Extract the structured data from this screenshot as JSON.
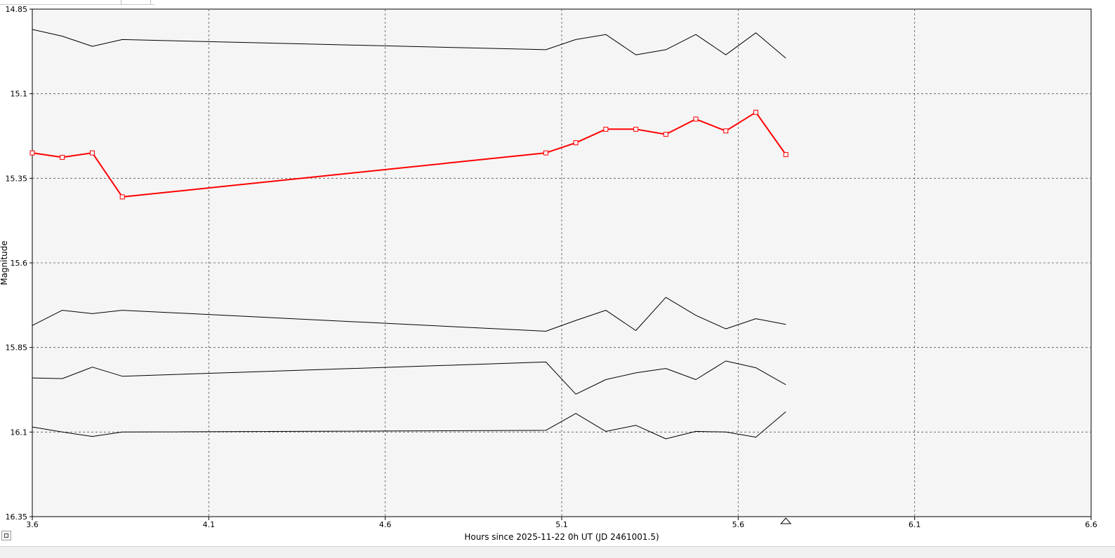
{
  "chart_data": {
    "type": "line",
    "title": "",
    "xlabel": "Hours since 2025-11-22 0h UT (JD 2461001.5)",
    "ylabel": "Magnitude",
    "xlim": [
      3.6,
      6.6
    ],
    "ylim": [
      14.85,
      16.35
    ],
    "y_inverted": true,
    "grid": true,
    "x_ticks": [
      3.6,
      4.1,
      4.6,
      5.1,
      5.6,
      6.1,
      6.6
    ],
    "y_ticks": [
      14.85,
      15.1,
      15.35,
      15.6,
      15.85,
      16.1,
      16.35
    ],
    "x_tick_labels": [
      "3.6",
      "4.1",
      "4.6",
      "5.1",
      "5.6",
      "6.1",
      "6.6"
    ],
    "y_tick_labels": [
      "14.85",
      "15.1",
      "15.35",
      "15.6",
      "15.85",
      "16.1",
      "16.35"
    ],
    "x": [
      3.6,
      3.685,
      3.77,
      3.855,
      5.055,
      5.14,
      5.225,
      5.31,
      5.395,
      5.48,
      5.565,
      5.65,
      5.735
    ],
    "marker_x": 5.735,
    "colors": {
      "target": "#ff0000",
      "comparison": "#000000",
      "background": "#f5f5f5",
      "grid": "#555555"
    },
    "series": [
      {
        "role": "comparison",
        "values": [
          14.91,
          14.93,
          14.96,
          14.94,
          14.97,
          14.94,
          14.925,
          14.985,
          14.97,
          14.925,
          14.985,
          14.92,
          14.995
        ]
      },
      {
        "role": "target",
        "markers": "square",
        "values": [
          15.275,
          15.288,
          15.275,
          15.405,
          15.275,
          15.245,
          15.205,
          15.205,
          15.22,
          15.175,
          15.21,
          15.155,
          15.28
        ]
      },
      {
        "role": "comparison",
        "values": [
          15.785,
          15.74,
          15.75,
          15.74,
          15.802,
          15.77,
          15.74,
          15.8,
          15.702,
          15.755,
          15.795,
          15.765,
          15.782
        ]
      },
      {
        "role": "comparison",
        "values": [
          15.94,
          15.942,
          15.908,
          15.935,
          15.893,
          15.988,
          15.945,
          15.925,
          15.912,
          15.945,
          15.89,
          15.91,
          15.96
        ]
      },
      {
        "role": "comparison",
        "values": [
          16.085,
          16.1,
          16.113,
          16.1,
          16.095,
          16.045,
          16.098,
          16.08,
          16.12,
          16.098,
          16.1,
          16.115,
          16.04
        ]
      }
    ]
  }
}
